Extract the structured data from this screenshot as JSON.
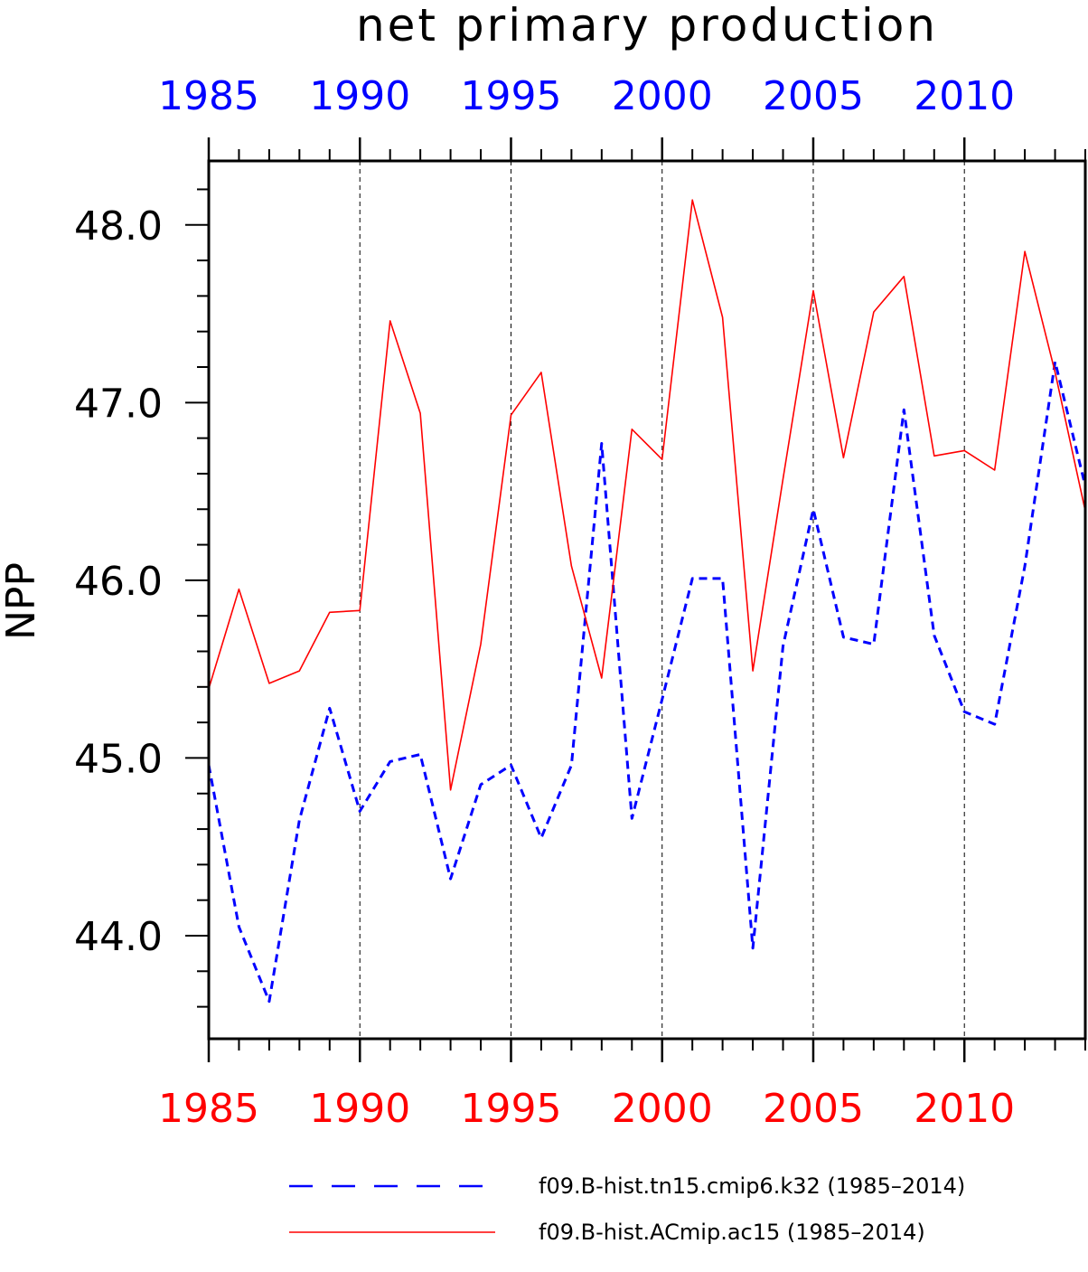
{
  "chart_data": {
    "type": "line",
    "title": "net primary production",
    "ylabel": "NPP",
    "xlim": [
      1985,
      2014
    ],
    "ylim": [
      43.42,
      48.36
    ],
    "x_ticks_labeled": [
      1985,
      1990,
      1995,
      2000,
      2005,
      2010
    ],
    "x_tick_labels": [
      "1985",
      "1990",
      "1995",
      "2000",
      "2005",
      "2010"
    ],
    "y_ticks_labeled": [
      44.0,
      45.0,
      46.0,
      47.0,
      48.0
    ],
    "y_tick_labels": [
      "44.0",
      "45.0",
      "46.0",
      "47.0",
      "48.0"
    ],
    "top_axis_color": "#0000ff",
    "bottom_axis_color": "#ff0000",
    "grid": "vertical dashed lines at every 5 years",
    "legend_placement": "bottom",
    "x": [
      1985,
      1986,
      1987,
      1988,
      1989,
      1990,
      1991,
      1992,
      1993,
      1994,
      1995,
      1996,
      1997,
      1998,
      1999,
      2000,
      2001,
      2002,
      2003,
      2004,
      2005,
      2006,
      2007,
      2008,
      2009,
      2010,
      2011,
      2012,
      2013,
      2014
    ],
    "series": [
      {
        "name": "f09.B-hist.tn15.cmip6.k32 (1985–2014)",
        "color": "#0000ff",
        "style": "dashed",
        "values": [
          44.96,
          44.05,
          43.63,
          44.65,
          45.28,
          44.7,
          44.98,
          45.02,
          44.32,
          44.85,
          44.96,
          44.55,
          44.96,
          46.77,
          44.66,
          45.33,
          46.01,
          46.01,
          43.93,
          45.63,
          46.4,
          45.68,
          45.64,
          46.96,
          45.69,
          45.26,
          45.19,
          46.08,
          47.23,
          46.53
        ]
      },
      {
        "name": "f09.B-hist.ACmip.ac15 (1985–2014)",
        "color": "#ff0000",
        "style": "solid",
        "values": [
          45.39,
          45.95,
          45.42,
          45.49,
          45.82,
          45.83,
          47.46,
          46.94,
          44.82,
          45.64,
          46.93,
          47.17,
          46.08,
          45.45,
          46.85,
          46.68,
          48.14,
          47.48,
          45.49,
          46.57,
          47.63,
          46.69,
          47.51,
          47.71,
          46.7,
          46.73,
          46.62,
          47.85,
          47.17,
          46.39
        ]
      }
    ]
  }
}
